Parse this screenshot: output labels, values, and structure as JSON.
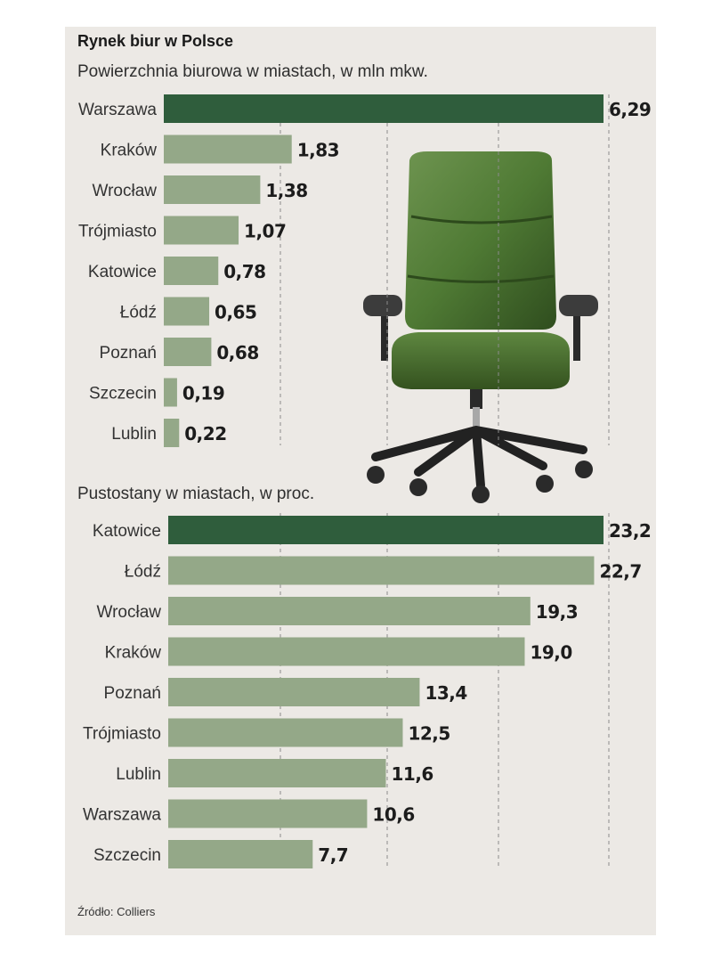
{
  "title": "Rynek biur w Polsce",
  "source": "Źródło: Colliers",
  "colors": {
    "highlight": "#2f5d3c",
    "bar": "#94a888",
    "background": "#ece9e5"
  },
  "image": {
    "name": "office-chair",
    "color": "#4f7a34"
  },
  "chart_data": [
    {
      "type": "bar",
      "orientation": "horizontal",
      "title": "Powierzchnia biurowa w miastach, w mln mkw.",
      "categories": [
        "Warszawa",
        "Kraków",
        "Wrocław",
        "Trójmiasto",
        "Katowice",
        "Łódź",
        "Poznań",
        "Szczecin",
        "Lublin"
      ],
      "values": [
        6.29,
        1.83,
        1.38,
        1.07,
        0.78,
        0.65,
        0.68,
        0.19,
        0.22
      ],
      "value_labels": [
        "6,29",
        "1,83",
        "1,38",
        "1,07",
        "0,78",
        "0,65",
        "0,68",
        "0,19",
        "0,22"
      ],
      "highlight_index": 0,
      "xlim": [
        0,
        6.29
      ],
      "grid": true
    },
    {
      "type": "bar",
      "orientation": "horizontal",
      "title": "Pustostany w miastach, w proc.",
      "categories": [
        "Katowice",
        "Łódź",
        "Wrocław",
        "Kraków",
        "Poznań",
        "Trójmiasto",
        "Lublin",
        "Warszawa",
        "Szczecin"
      ],
      "values": [
        23.2,
        22.7,
        19.3,
        19.0,
        13.4,
        12.5,
        11.6,
        10.6,
        7.7
      ],
      "value_labels": [
        "23,2",
        "22,7",
        "19,3",
        "19,0",
        "13,4",
        "12,5",
        "11,6",
        "10,6",
        "7,7"
      ],
      "highlight_index": 0,
      "xlim": [
        0,
        23.2
      ],
      "grid": true
    }
  ]
}
